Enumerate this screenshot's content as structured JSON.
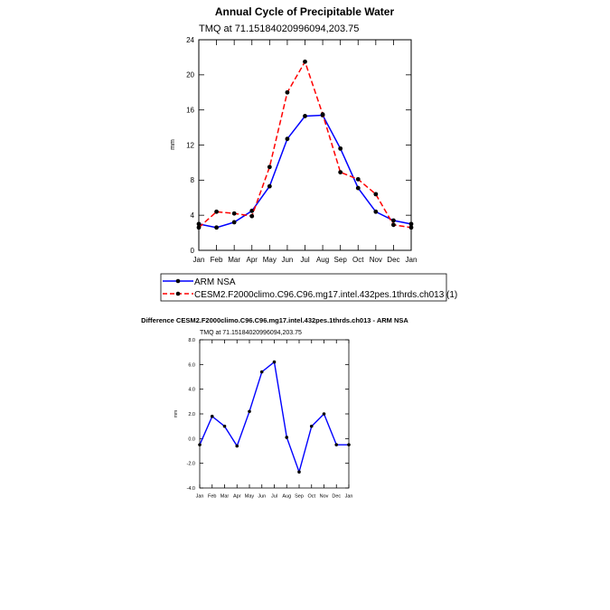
{
  "chart_data": [
    {
      "type": "line",
      "title": "Annual Cycle of Precipitable Water",
      "subtitle": "TMQ at 71.15184020996094,203.75",
      "ylabel": "mm",
      "xlabel": "",
      "ylim": [
        0,
        24
      ],
      "yticks": [
        0,
        4,
        8,
        12,
        16,
        20,
        24
      ],
      "categories": [
        "Jan",
        "Feb",
        "Mar",
        "Apr",
        "May",
        "Jun",
        "Jul",
        "Aug",
        "Sep",
        "Oct",
        "Nov",
        "Dec",
        "Jan"
      ],
      "series": [
        {
          "name": "ARM NSA",
          "color": "#0000ff",
          "dash": "solid",
          "values": [
            3.0,
            2.6,
            3.2,
            4.5,
            7.3,
            12.7,
            15.3,
            15.4,
            11.6,
            7.1,
            4.4,
            3.4,
            3.0
          ]
        },
        {
          "name": "CESM2.F2000climo.C96.C96.mg17.intel.432pes.1thrds.ch013 (1)",
          "color": "#ff0000",
          "dash": "dashed",
          "values": [
            2.6,
            4.4,
            4.2,
            3.9,
            9.5,
            18.0,
            21.5,
            15.5,
            8.9,
            8.1,
            6.4,
            2.9,
            2.6
          ]
        }
      ],
      "legend_position": "bottom"
    },
    {
      "type": "line",
      "title": "Difference CESM2.F2000climo.C96.C96.mg17.intel.432pes.1thrds.ch013 - ARM NSA",
      "subtitle": "TMQ at 71.15184020996094,203.75",
      "ylabel": "mm",
      "xlabel": "",
      "ylim": [
        -4.0,
        8.0
      ],
      "yticks": [
        "-4.0",
        "-2.0",
        "0.0",
        "2.0",
        "4.0",
        "6.0",
        "8.0"
      ],
      "categories": [
        "Jan",
        "Feb",
        "Mar",
        "Apr",
        "May",
        "Jun",
        "Jul",
        "Aug",
        "Sep",
        "Oct",
        "Nov",
        "Dec",
        "Jan"
      ],
      "series": [
        {
          "color": "#0000ff",
          "values": [
            -0.5,
            1.8,
            1.0,
            -0.6,
            2.2,
            5.4,
            6.2,
            0.1,
            -2.7,
            1.0,
            2.0,
            -0.5,
            -0.5
          ]
        }
      ]
    }
  ]
}
